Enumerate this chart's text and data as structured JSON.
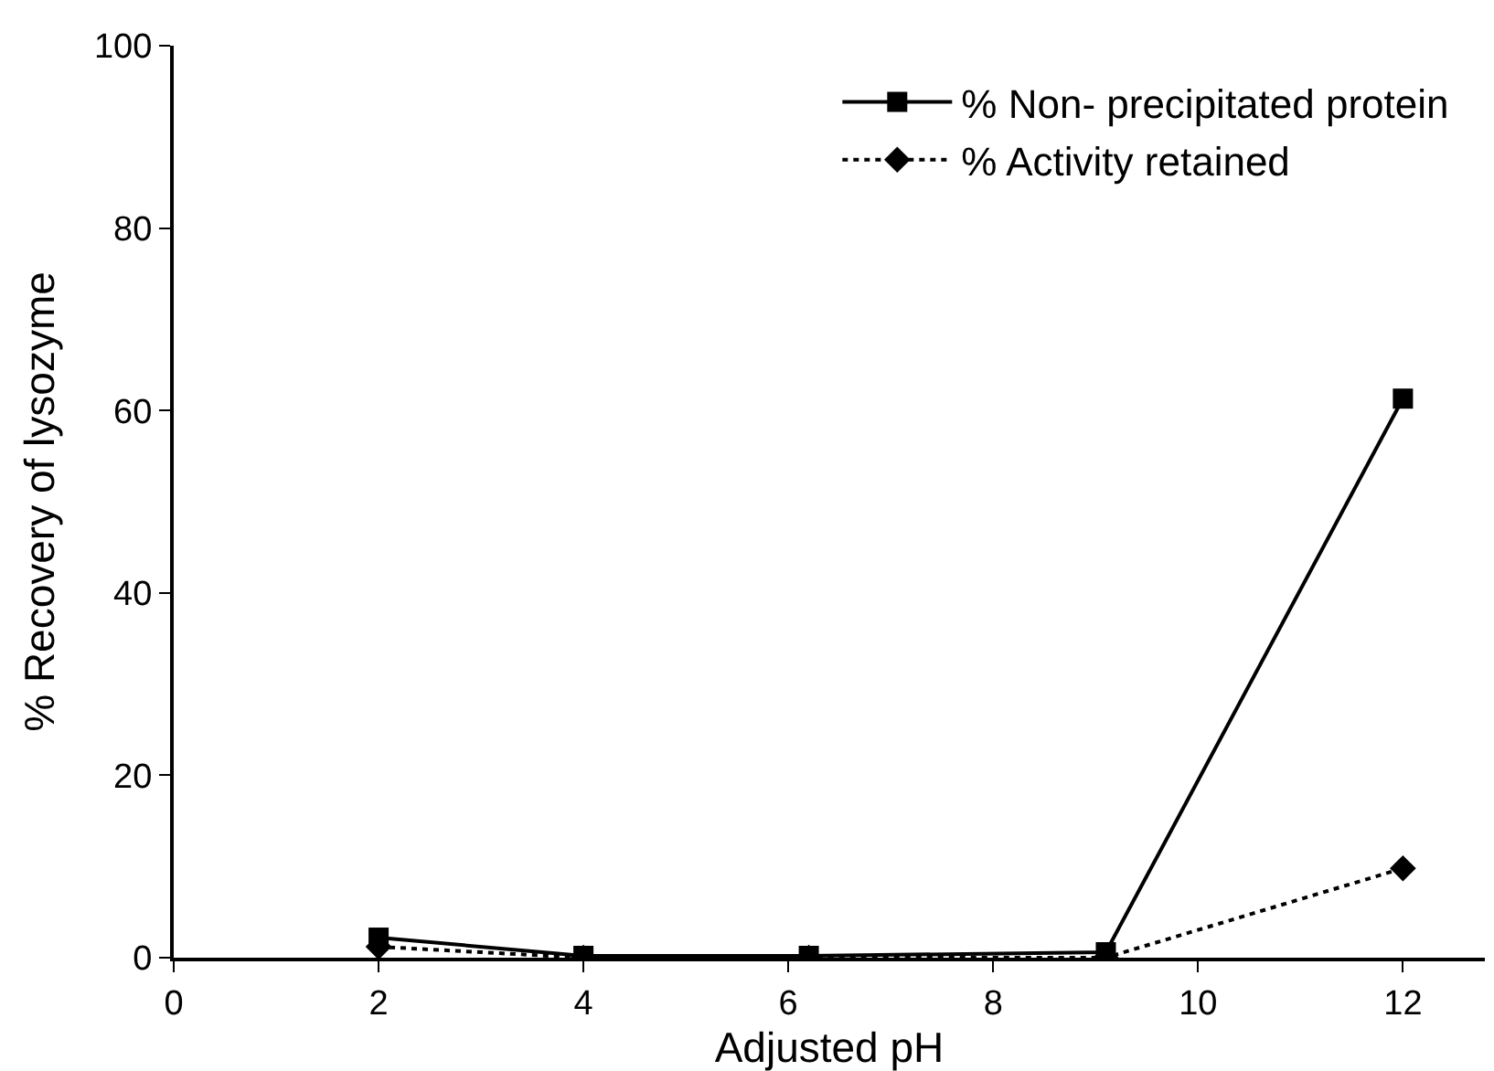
{
  "chart_data": {
    "type": "line",
    "xlabel": "Adjusted pH",
    "ylabel": "% Recovery of lysozyme",
    "xlim": [
      0,
      12.8
    ],
    "xticks": [
      0,
      2,
      4,
      6,
      8,
      10,
      12
    ],
    "ylim": [
      0,
      100
    ],
    "yticks": [
      0,
      20,
      40,
      60,
      80,
      100
    ],
    "legend": "top right",
    "series": [
      {
        "name": "% Non- precipitated protein",
        "color": "#000000",
        "x": [
          2,
          4,
          6.2,
          9.1,
          12
        ],
        "values": [
          2.2,
          0.2,
          0.2,
          0.6,
          61.3
        ],
        "marker": "square",
        "line_style": "solid"
      },
      {
        "name": "% Activity retained",
        "color": "#000000",
        "x": [
          2,
          4,
          6.2,
          9.1,
          12
        ],
        "values": [
          1.2,
          0,
          0,
          0,
          9.8
        ],
        "marker": "diamond",
        "line_style": "dotted"
      }
    ]
  }
}
